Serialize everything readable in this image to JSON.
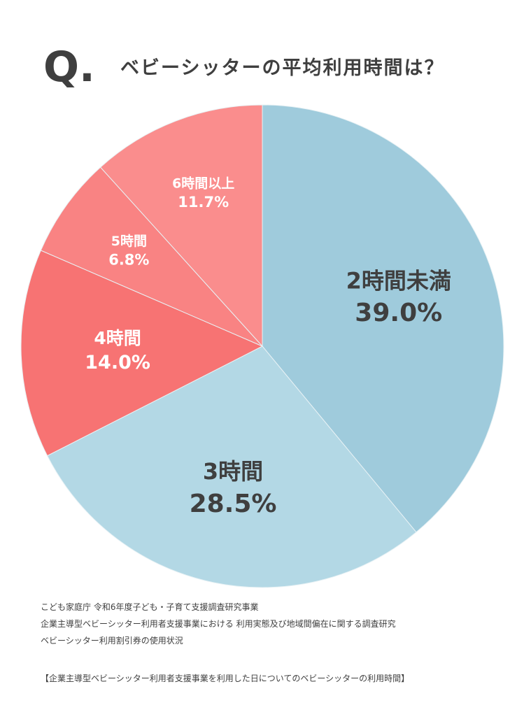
{
  "chart_data": {
    "type": "pie",
    "title_prefix": "Q.",
    "title": "ベビーシッターの平均利用時間は？",
    "categories": [
      "2時間未満",
      "3時間",
      "4時間",
      "5時間",
      "6時間以上"
    ],
    "values": [
      39.0,
      28.5,
      14.0,
      6.8,
      11.7
    ],
    "value_labels": [
      "39.0%",
      "28.5%",
      "14.0%",
      "6.8%",
      "11.7%"
    ],
    "colors": [
      "#9fcbdc",
      "#b3d8e5",
      "#f77373",
      "#f98383",
      "#fa8d8d"
    ],
    "notes": [
      "こども家庭庁 令和6年度子ども・子育て支援調査研究事業",
      "企業主導型ベビーシッター利用者支援事業における 利用実態及び地域間偏在に関する調査研究",
      "ベビーシッター利用割引券の使用状況",
      "【企業主導型ベビーシッター利用者支援事業を利用した日についてのベビーシッターの利用時間】"
    ]
  }
}
